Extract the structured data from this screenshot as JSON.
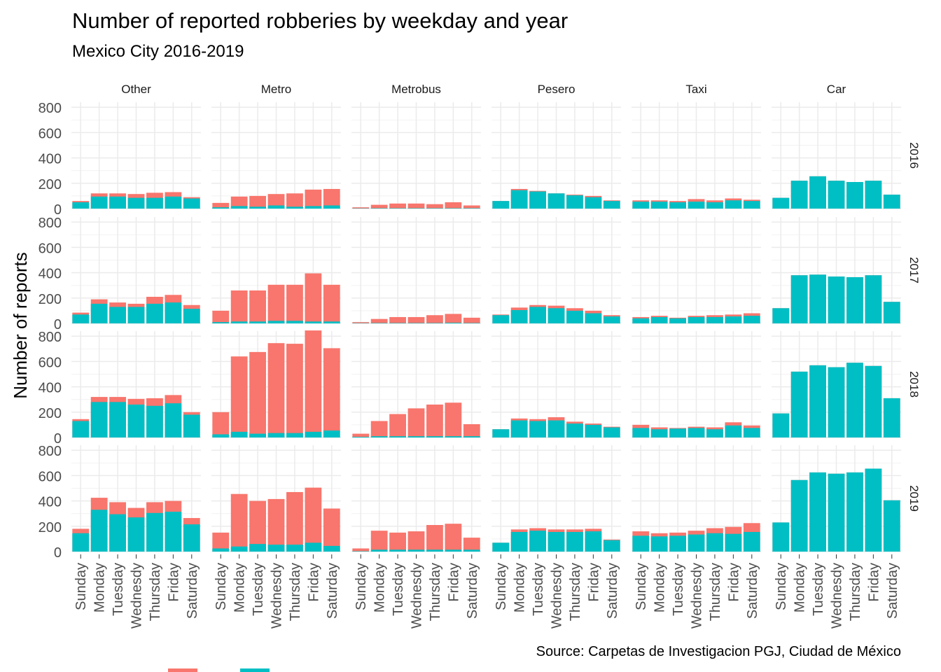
{
  "chart_data": {
    "type": "bar",
    "subtype": "stacked-faceted",
    "title": "Number of reported robberies by weekday and year",
    "subtitle": "Mexico City 2016-2019",
    "caption": "Source: Carpetas de Investigacion PGJ, Ciudad de México",
    "ylabel": "Number of reports",
    "xlabel": "",
    "ylim": [
      0,
      840
    ],
    "yticks": [
      0,
      200,
      400,
      600,
      800
    ],
    "grid": true,
    "categories": [
      "Sunday",
      "Monday",
      "Tuesday",
      "Wednesdy",
      "Thursday",
      "Friday",
      "Saturday"
    ],
    "facet_cols": [
      "Other",
      "Metro",
      "Metrobus",
      "Pesero",
      "Taxi",
      "Car"
    ],
    "facet_rows": [
      "2016",
      "2017",
      "2018",
      "2019"
    ],
    "series_colors": [
      "#F8766D",
      "#00BFC4"
    ],
    "legend": {
      "position": "bottom",
      "colors": [
        "#F8766D",
        "#00BFC4"
      ]
    },
    "panels": {
      "2016": {
        "Other": {
          "series1": [
            60,
            120,
            120,
            115,
            125,
            130,
            90
          ],
          "series2": [
            50,
            95,
            95,
            85,
            85,
            95,
            80
          ]
        },
        "Metro": {
          "series1": [
            45,
            95,
            100,
            115,
            120,
            150,
            155
          ],
          "series2": [
            10,
            20,
            15,
            25,
            15,
            20,
            25
          ]
        },
        "Metrobus": {
          "series1": [
            10,
            30,
            40,
            40,
            35,
            50,
            25
          ],
          "series2": [
            2,
            3,
            3,
            3,
            3,
            3,
            3
          ]
        },
        "Pesero": {
          "series1": [
            60,
            155,
            140,
            120,
            110,
            100,
            65
          ],
          "series2": [
            60,
            145,
            135,
            120,
            105,
            90,
            60
          ]
        },
        "Taxi": {
          "series1": [
            65,
            65,
            60,
            75,
            65,
            80,
            70
          ],
          "series2": [
            55,
            55,
            50,
            55,
            50,
            65,
            60
          ]
        },
        "Car": {
          "series1": [
            85,
            220,
            255,
            220,
            210,
            220,
            110
          ],
          "series2": [
            85,
            220,
            255,
            220,
            210,
            220,
            110
          ]
        }
      },
      "2017": {
        "Other": {
          "series1": [
            85,
            190,
            165,
            155,
            210,
            225,
            145
          ],
          "series2": [
            70,
            155,
            130,
            130,
            155,
            165,
            115
          ]
        },
        "Metro": {
          "series1": [
            100,
            260,
            260,
            305,
            305,
            395,
            305
          ],
          "series2": [
            10,
            15,
            15,
            20,
            20,
            15,
            15
          ]
        },
        "Metrobus": {
          "series1": [
            10,
            35,
            50,
            50,
            65,
            75,
            45
          ],
          "series2": [
            2,
            3,
            3,
            3,
            3,
            5,
            3
          ]
        },
        "Pesero": {
          "series1": [
            70,
            125,
            145,
            140,
            120,
            100,
            65
          ],
          "series2": [
            65,
            105,
            130,
            120,
            100,
            80,
            55
          ]
        },
        "Taxi": {
          "series1": [
            50,
            60,
            45,
            60,
            65,
            70,
            80
          ],
          "series2": [
            40,
            50,
            40,
            50,
            50,
            55,
            60
          ]
        },
        "Car": {
          "series1": [
            120,
            380,
            385,
            370,
            365,
            380,
            170
          ],
          "series2": [
            120,
            380,
            385,
            370,
            365,
            380,
            170
          ]
        }
      },
      "2018": {
        "Other": {
          "series1": [
            145,
            320,
            320,
            305,
            310,
            335,
            200
          ],
          "series2": [
            130,
            280,
            280,
            260,
            250,
            270,
            180
          ]
        },
        "Metro": {
          "series1": [
            200,
            640,
            675,
            745,
            740,
            845,
            705
          ],
          "series2": [
            25,
            45,
            30,
            35,
            35,
            45,
            55
          ]
        },
        "Metrobus": {
          "series1": [
            30,
            130,
            185,
            230,
            260,
            275,
            105
          ],
          "series2": [
            5,
            10,
            10,
            10,
            10,
            10,
            10
          ]
        },
        "Pesero": {
          "series1": [
            65,
            150,
            145,
            160,
            125,
            110,
            85
          ],
          "series2": [
            65,
            135,
            130,
            135,
            110,
            100,
            80
          ]
        },
        "Taxi": {
          "series1": [
            100,
            80,
            75,
            85,
            80,
            120,
            95
          ],
          "series2": [
            75,
            65,
            70,
            75,
            65,
            95,
            75
          ]
        },
        "Car": {
          "series1": [
            190,
            520,
            570,
            555,
            590,
            565,
            310
          ],
          "series2": [
            190,
            520,
            570,
            555,
            590,
            565,
            310
          ]
        }
      },
      "2019": {
        "Other": {
          "series1": [
            180,
            425,
            390,
            345,
            390,
            400,
            265
          ],
          "series2": [
            145,
            330,
            295,
            270,
            305,
            315,
            215
          ]
        },
        "Metro": {
          "series1": [
            150,
            455,
            400,
            415,
            470,
            505,
            340
          ],
          "series2": [
            25,
            40,
            60,
            55,
            55,
            70,
            45
          ]
        },
        "Metrobus": {
          "series1": [
            25,
            165,
            150,
            160,
            210,
            220,
            110
          ],
          "series2": [
            3,
            15,
            15,
            15,
            15,
            15,
            15
          ]
        },
        "Pesero": {
          "series1": [
            70,
            175,
            185,
            175,
            175,
            180,
            95
          ],
          "series2": [
            70,
            155,
            165,
            155,
            155,
            160,
            90
          ]
        },
        "Taxi": {
          "series1": [
            160,
            145,
            150,
            165,
            185,
            195,
            225
          ],
          "series2": [
            125,
            120,
            125,
            135,
            145,
            140,
            155
          ]
        },
        "Car": {
          "series1": [
            230,
            565,
            625,
            615,
            625,
            655,
            405
          ],
          "series2": [
            230,
            565,
            625,
            615,
            625,
            655,
            405
          ]
        }
      }
    }
  }
}
